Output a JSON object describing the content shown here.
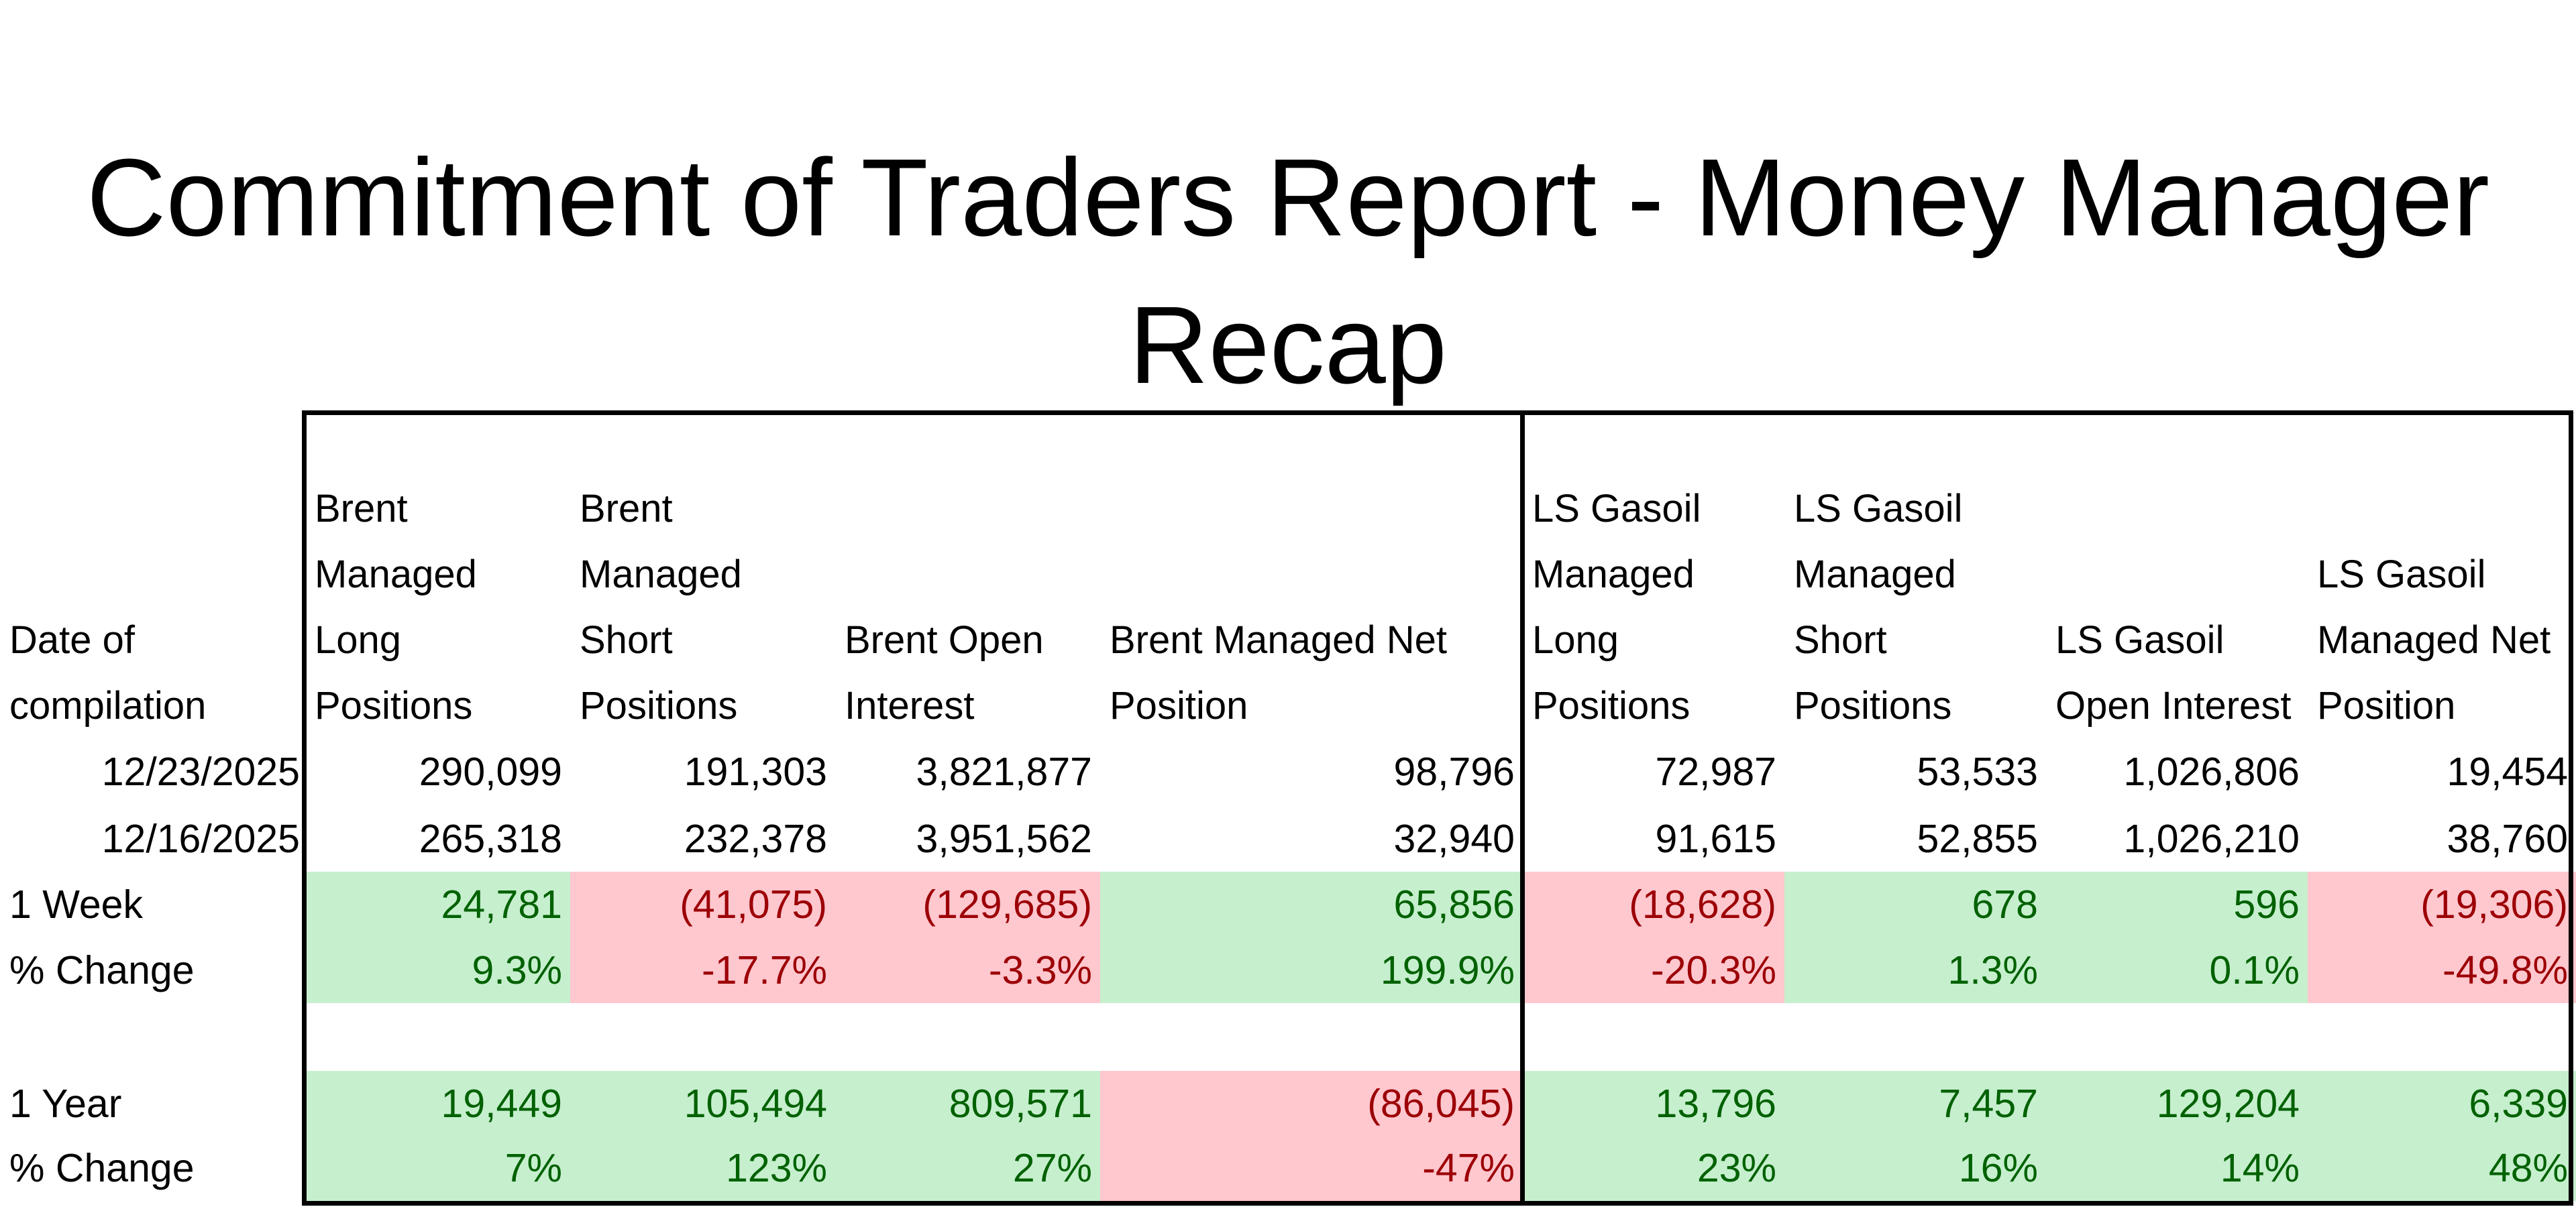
{
  "title_line1": "Commitment of Traders Report - Money Manager",
  "title_line2": "Recap",
  "headers": [
    "Date of compilation",
    "Brent Managed Long Positions",
    "Brent Managed Short Positions",
    "Brent Open Interest",
    "Brent Managed Net Position",
    "LS Gasoil Managed Long Positions",
    "LS Gasoil Managed Short Positions",
    "LS Gasoil Open Interest",
    "LS Gasoil Managed Net Position"
  ],
  "rows": [
    {
      "label": "12/23/2025",
      "values": [
        "290,099",
        "191,303",
        "3,821,877",
        "98,796",
        "72,987",
        "53,533",
        "1,026,806",
        "19,454"
      ]
    },
    {
      "label": "12/16/2025",
      "values": [
        "265,318",
        "232,378",
        "3,951,562",
        "32,940",
        "91,615",
        "52,855",
        "1,026,210",
        "38,760"
      ]
    },
    {
      "label": "1 Week",
      "values": [
        "24,781",
        "(41,075)",
        "(129,685)",
        "65,856",
        "(18,628)",
        "678",
        "596",
        "(19,306)"
      ],
      "status": [
        "pos",
        "neg",
        "neg",
        "pos",
        "neg",
        "pos",
        "pos",
        "neg"
      ]
    },
    {
      "label": "% Change",
      "values": [
        "9.3%",
        "-17.7%",
        "-3.3%",
        "199.9%",
        "-20.3%",
        "1.3%",
        "0.1%",
        "-49.8%"
      ],
      "status": [
        "pos",
        "neg",
        "neg",
        "pos",
        "neg",
        "pos",
        "pos",
        "neg"
      ]
    },
    {
      "label": "1 Year",
      "values": [
        "19,449",
        "105,494",
        "809,571",
        "(86,045)",
        "13,796",
        "7,457",
        "129,204",
        "6,339"
      ],
      "status": [
        "pos",
        "pos",
        "pos",
        "neg",
        "pos",
        "pos",
        "pos",
        "pos"
      ]
    },
    {
      "label": "% Change",
      "values": [
        "7%",
        "123%",
        "27%",
        "-47%",
        "23%",
        "16%",
        "14%",
        "48%"
      ],
      "status": [
        "pos",
        "pos",
        "pos",
        "neg",
        "pos",
        "pos",
        "pos",
        "pos"
      ]
    }
  ],
  "colors": {
    "positive_fill": "#c6efce",
    "positive_text": "#006100",
    "negative_fill": "#ffc7ce",
    "negative_text": "#9c0006"
  }
}
